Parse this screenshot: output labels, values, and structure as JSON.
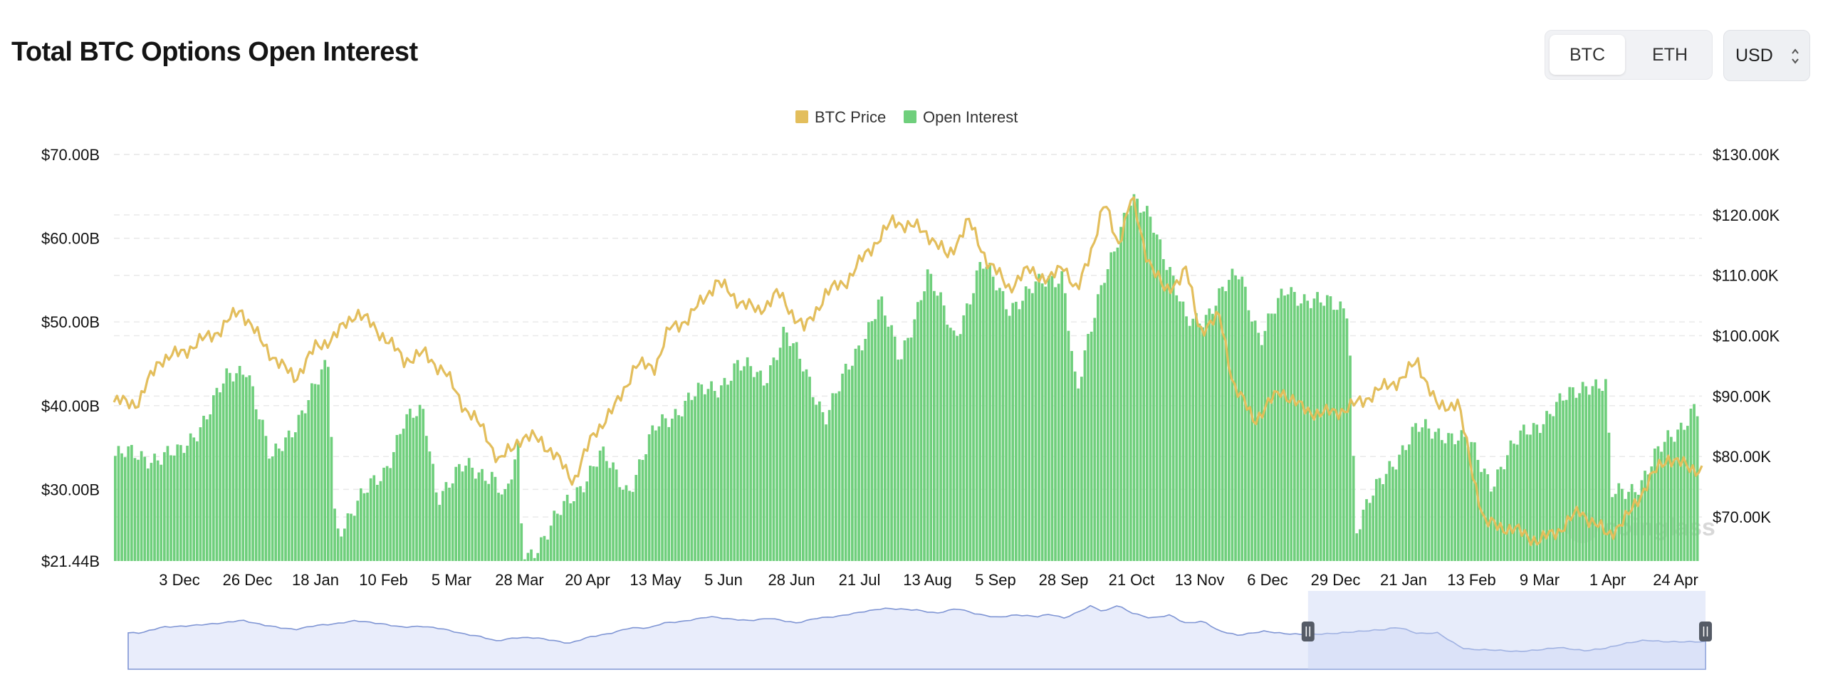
{
  "header": {
    "title": "Total BTC Options Open Interest",
    "tabs": [
      {
        "label": "BTC",
        "active": true
      },
      {
        "label": "ETH",
        "active": false
      }
    ],
    "currency": "USD"
  },
  "watermark": "coinglass",
  "colors": {
    "price": "#e3be5c",
    "oi": "#6fcf7c",
    "oi_stroke": "#5fbf6c",
    "grid": "#e9e9e9",
    "navigator_fill": "#e9edfb",
    "navigator_line": "#7f95d4"
  },
  "chart_data": {
    "type": "bar+line",
    "legend": [
      "BTC Price",
      "Open Interest"
    ],
    "legend_position": "top-center",
    "x_ticks": [
      "3 Dec",
      "26 Dec",
      "18 Jan",
      "10 Feb",
      "5 Mar",
      "28 Mar",
      "20 Apr",
      "13 May",
      "5 Jun",
      "28 Jun",
      "21 Jul",
      "13 Aug",
      "5 Sep",
      "28 Sep",
      "21 Oct",
      "13 Nov",
      "6 Dec",
      "29 Dec",
      "21 Jan",
      "13 Feb",
      "9 Mar",
      "1 Apr",
      "24 Apr"
    ],
    "y_left_ticks": [
      "$70.00B",
      "$60.00B",
      "$50.00B",
      "$40.00B",
      "$30.00B",
      "$21.44B"
    ],
    "y_left_values": [
      70,
      60,
      50,
      40,
      30,
      21.44
    ],
    "y_right_ticks": [
      "$130.00K",
      "$120.00K",
      "$110.00K",
      "$100.00K",
      "$90.00K",
      "$80.00K",
      "$70.00K"
    ],
    "y_right_values": [
      130,
      120,
      110,
      100,
      90,
      80,
      70
    ],
    "y_left_range": [
      21.44,
      70
    ],
    "y_right_range": [
      62.7,
      130
    ],
    "grid": true,
    "series": [
      {
        "name": "Open Interest",
        "kind": "bar",
        "unit": "B USD",
        "anchors_tick_value": [
          [
            0,
            34
          ],
          [
            0.4,
            39
          ],
          [
            0.7,
            43
          ],
          [
            1,
            45
          ],
          [
            1.35,
            33
          ],
          [
            1.7,
            38
          ],
          [
            2,
            42
          ],
          [
            2.2,
            45
          ],
          [
            2.3,
            25
          ],
          [
            2.6,
            28
          ],
          [
            3,
            32
          ],
          [
            3.3,
            38
          ],
          [
            3.6,
            39
          ],
          [
            3.8,
            29.5
          ],
          [
            4.2,
            32.5
          ],
          [
            4.6,
            32
          ],
          [
            4.8,
            28.5
          ],
          [
            5,
            35
          ],
          [
            5.05,
            21.8
          ],
          [
            5.4,
            24.5
          ],
          [
            5.8,
            29.5
          ],
          [
            6.2,
            34
          ],
          [
            6.6,
            30
          ],
          [
            7,
            37
          ],
          [
            7.5,
            41
          ],
          [
            7.9,
            42
          ],
          [
            8.2,
            45
          ],
          [
            8.6,
            43
          ],
          [
            8.9,
            49
          ],
          [
            9.2,
            44
          ],
          [
            9.5,
            39
          ],
          [
            9.9,
            45
          ],
          [
            10.3,
            53
          ],
          [
            10.6,
            45
          ],
          [
            11,
            56
          ],
          [
            11.4,
            48
          ],
          [
            11.8,
            57
          ],
          [
            12.2,
            52
          ],
          [
            12.6,
            54
          ],
          [
            13,
            56
          ],
          [
            13.2,
            41
          ],
          [
            13.6,
            56
          ],
          [
            14,
            64
          ],
          [
            14.3,
            63
          ],
          [
            14.6,
            55
          ],
          [
            14.8,
            50
          ],
          [
            15.1,
            51
          ],
          [
            15.6,
            56
          ],
          [
            15.9,
            48
          ],
          [
            16.3,
            54
          ],
          [
            16.8,
            52
          ],
          [
            17.2,
            52
          ],
          [
            17.3,
            25
          ],
          [
            17.8,
            33
          ],
          [
            18.2,
            37
          ],
          [
            18.6,
            37
          ],
          [
            19,
            35
          ],
          [
            19.3,
            31
          ],
          [
            19.8,
            37
          ],
          [
            20.3,
            40
          ],
          [
            20.7,
            43
          ],
          [
            21,
            42
          ],
          [
            21.05,
            29
          ],
          [
            21.5,
            31
          ],
          [
            21.9,
            36
          ],
          [
            22.3,
            40
          ],
          [
            22.6,
            32
          ]
        ]
      },
      {
        "name": "BTC Price",
        "kind": "line",
        "unit": "K USD",
        "anchors_tick_value": [
          [
            -0.6,
            89
          ],
          [
            -0.3,
            96
          ],
          [
            0,
            97
          ],
          [
            0.3,
            99
          ],
          [
            0.6,
            101
          ],
          [
            0.9,
            104.5
          ],
          [
            1.2,
            99
          ],
          [
            1.5,
            95
          ],
          [
            1.7,
            93
          ],
          [
            2,
            98
          ],
          [
            2.3,
            100
          ],
          [
            2.6,
            104
          ],
          [
            3,
            100
          ],
          [
            3.3,
            96
          ],
          [
            3.6,
            97
          ],
          [
            3.9,
            94
          ],
          [
            4.2,
            88
          ],
          [
            4.5,
            84
          ],
          [
            4.7,
            79
          ],
          [
            5,
            83
          ],
          [
            5.3,
            83
          ],
          [
            5.6,
            79
          ],
          [
            5.8,
            76
          ],
          [
            6.1,
            84
          ],
          [
            6.4,
            88
          ],
          [
            6.7,
            95
          ],
          [
            7,
            95
          ],
          [
            7.2,
            101
          ],
          [
            7.5,
            103
          ],
          [
            7.7,
            106
          ],
          [
            7.9,
            109
          ],
          [
            8.2,
            106
          ],
          [
            8.5,
            104
          ],
          [
            8.8,
            107
          ],
          [
            9.2,
            101
          ],
          [
            9.5,
            107
          ],
          [
            9.8,
            109
          ],
          [
            10.2,
            115
          ],
          [
            10.5,
            119
          ],
          [
            10.8,
            118
          ],
          [
            11,
            117
          ],
          [
            11.3,
            113
          ],
          [
            11.6,
            119
          ],
          [
            11.9,
            112
          ],
          [
            12.2,
            108
          ],
          [
            12.5,
            111
          ],
          [
            12.8,
            109
          ],
          [
            13,
            112
          ],
          [
            13.2,
            107
          ],
          [
            13.4,
            114
          ],
          [
            13.6,
            122
          ],
          [
            13.8,
            115
          ],
          [
            14,
            123
          ],
          [
            14.2,
            114
          ],
          [
            14.5,
            107
          ],
          [
            14.8,
            111
          ],
          [
            15,
            101
          ],
          [
            15.3,
            103
          ],
          [
            15.5,
            92
          ],
          [
            15.8,
            86
          ],
          [
            16.2,
            91
          ],
          [
            16.5,
            88
          ],
          [
            16.8,
            87
          ],
          [
            17.2,
            88
          ],
          [
            17.5,
            90
          ],
          [
            17.8,
            92
          ],
          [
            18,
            93
          ],
          [
            18.2,
            96
          ],
          [
            18.5,
            88
          ],
          [
            18.8,
            89
          ],
          [
            19.0,
            78
          ],
          [
            19.2,
            69
          ],
          [
            19.6,
            68
          ],
          [
            20,
            66
          ],
          [
            20.3,
            68
          ],
          [
            20.6,
            71
          ],
          [
            21,
            67
          ],
          [
            21.3,
            70
          ],
          [
            21.6,
            76
          ],
          [
            21.9,
            80
          ],
          [
            22.2,
            78
          ],
          [
            22.6,
            78
          ]
        ]
      }
    ],
    "navigator": {
      "range_selected_fraction": [
        0.748,
        1.0
      ]
    }
  }
}
